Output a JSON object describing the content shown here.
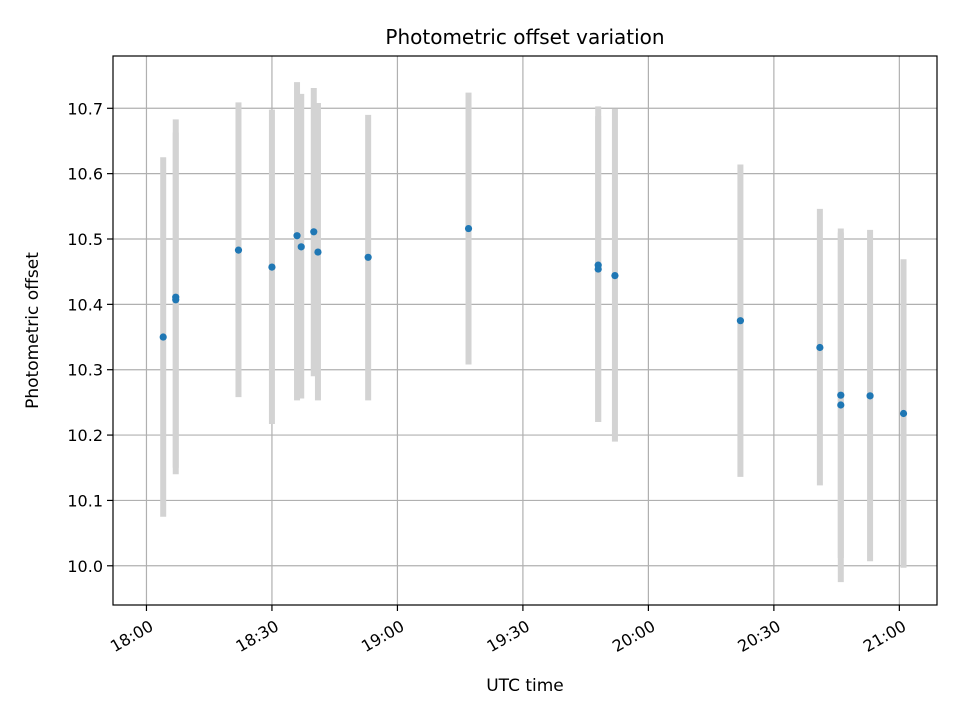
{
  "chart_data": {
    "type": "scatter",
    "title": "Photometric offset variation",
    "xlabel": "UTC time",
    "ylabel": "Photometric offset",
    "xlim": [
      "17:52",
      "21:09"
    ],
    "ylim": [
      9.94,
      10.78
    ],
    "grid": true,
    "x_ticks": [
      "18:00",
      "18:30",
      "19:00",
      "19:30",
      "20:00",
      "20:30",
      "21:00"
    ],
    "y_ticks": [
      "10.0",
      "10.1",
      "10.2",
      "10.3",
      "10.4",
      "10.5",
      "10.6",
      "10.7"
    ],
    "colors": {
      "point": "#1f77b4",
      "errorbar": "#d3d3d3",
      "grid": "#b0b0b0"
    },
    "points": [
      {
        "x": "18:04",
        "y": 10.35,
        "ylow": 10.075,
        "yhigh": 10.625
      },
      {
        "x": "18:07",
        "y": 10.407,
        "ylow": 10.15,
        "yhigh": 10.663
      },
      {
        "x": "18:07",
        "y": 10.411,
        "ylow": 10.14,
        "yhigh": 10.683
      },
      {
        "x": "18:22",
        "y": 10.483,
        "ylow": 10.258,
        "yhigh": 10.709
      },
      {
        "x": "18:30",
        "y": 10.457,
        "ylow": 10.217,
        "yhigh": 10.698
      },
      {
        "x": "18:36",
        "y": 10.505,
        "ylow": 10.253,
        "yhigh": 10.74
      },
      {
        "x": "18:37",
        "y": 10.488,
        "ylow": 10.256,
        "yhigh": 10.722
      },
      {
        "x": "18:40",
        "y": 10.511,
        "ylow": 10.29,
        "yhigh": 10.731
      },
      {
        "x": "18:41",
        "y": 10.48,
        "ylow": 10.253,
        "yhigh": 10.708
      },
      {
        "x": "18:53",
        "y": 10.472,
        "ylow": 10.253,
        "yhigh": 10.69
      },
      {
        "x": "19:17",
        "y": 10.516,
        "ylow": 10.308,
        "yhigh": 10.724
      },
      {
        "x": "19:48",
        "y": 10.46,
        "ylow": 10.22,
        "yhigh": 10.703
      },
      {
        "x": "19:48",
        "y": 10.454,
        "ylow": 10.22,
        "yhigh": 10.688
      },
      {
        "x": "19:52",
        "y": 10.444,
        "ylow": 10.19,
        "yhigh": 10.699
      },
      {
        "x": "20:22",
        "y": 10.375,
        "ylow": 10.136,
        "yhigh": 10.614
      },
      {
        "x": "20:41",
        "y": 10.334,
        "ylow": 10.123,
        "yhigh": 10.546
      },
      {
        "x": "20:46",
        "y": 10.246,
        "ylow": 9.975,
        "yhigh": 10.516
      },
      {
        "x": "20:46",
        "y": 10.261,
        "ylow": 10.012,
        "yhigh": 10.51
      },
      {
        "x": "20:53",
        "y": 10.26,
        "ylow": 10.007,
        "yhigh": 10.514
      },
      {
        "x": "21:01",
        "y": 10.233,
        "ylow": 9.997,
        "yhigh": 10.469
      }
    ]
  }
}
